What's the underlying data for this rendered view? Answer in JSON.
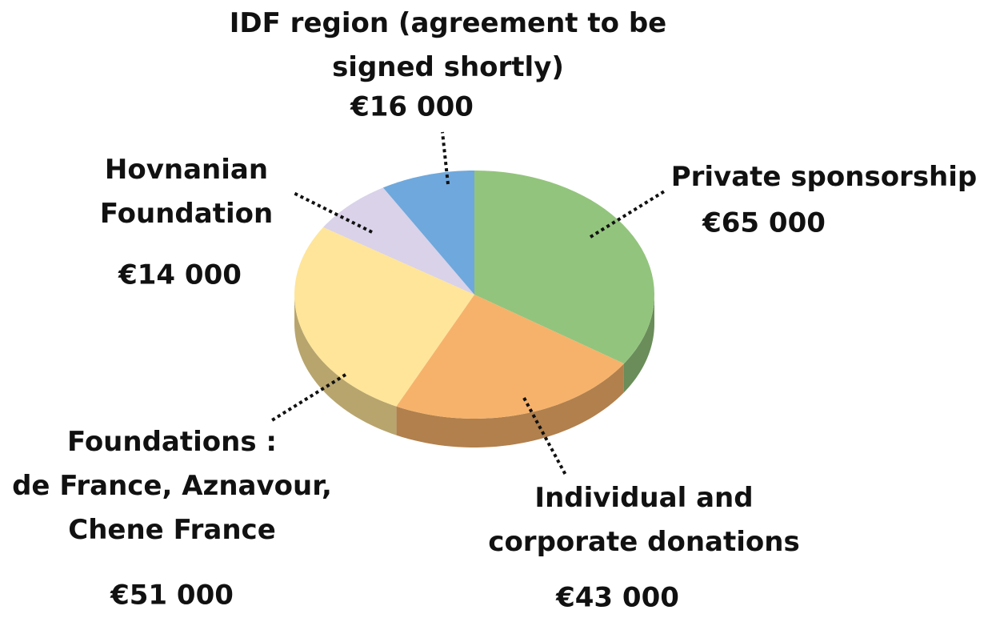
{
  "chart_data": {
    "type": "pie",
    "categories": [
      "Private sponsorship",
      "Individual and\ncorporate donations",
      "Foundations :\nde France, Aznavour,\nChene France",
      "Hovnanian\nFoundation",
      "IDF region (agreement to be\nsigned shortly)"
    ],
    "values": [
      65000,
      43000,
      51000,
      14000,
      16000
    ],
    "value_labels": [
      "€65 000",
      "€43 000",
      "€51 000",
      "€14 000",
      "€16 000"
    ],
    "colors": [
      "#93c47d",
      "#f6b26b",
      "#ffe599",
      "#d9d2e9",
      "#6fa8dc"
    ]
  }
}
